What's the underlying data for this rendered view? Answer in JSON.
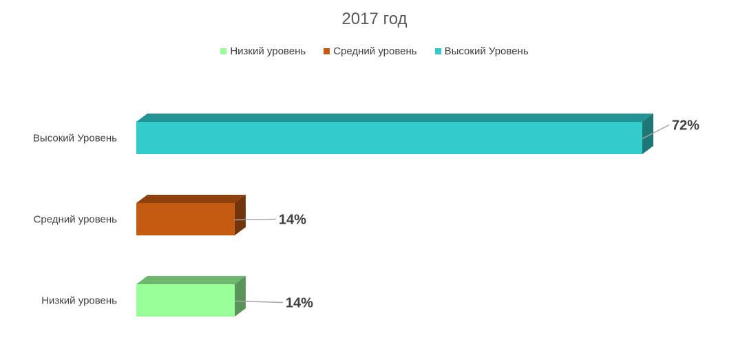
{
  "chart_data": {
    "type": "bar",
    "orientation": "horizontal",
    "title": "2017 год",
    "categories": [
      "Низкий уровень",
      "Средний уровень",
      "Высокий Уровень"
    ],
    "values": [
      14,
      14,
      72
    ],
    "data_labels": [
      "14%",
      "14%",
      "72%"
    ],
    "colors": [
      "#99ff99",
      "#c55a11",
      "#33cccc"
    ],
    "legend": {
      "position": "top",
      "items": [
        {
          "label": "Низкий уровень",
          "color": "#99ff99"
        },
        {
          "label": "Средний уровень",
          "color": "#c55a11"
        },
        {
          "label": "Высокий Уровень",
          "color": "#33cccc"
        }
      ]
    },
    "xlim": [
      0,
      72
    ],
    "grid": false,
    "style": "3d-bar"
  }
}
